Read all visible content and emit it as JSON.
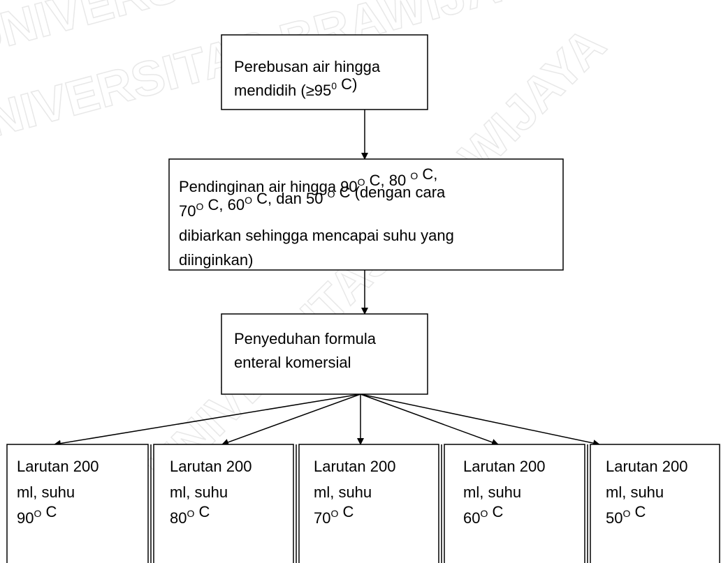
{
  "watermark": "UNIVERSITAS BRAWIJAYA",
  "nodes": [
    {
      "lines": [
        [
          "Perebusan air hingga"
        ],
        [
          "mendidih (≥95",
          {
            "sup": "0"
          },
          " C)"
        ]
      ]
    },
    {
      "lines": [
        [
          "Pendinginan air hingga 90",
          {
            "sup": "O"
          },
          " C, 80 ",
          {
            "sup": "O"
          },
          " C,"
        ],
        [
          "70",
          {
            "sup": "O"
          },
          " C, 60",
          {
            "sup": "O"
          },
          " C, dan 50 ",
          {
            "sup": "O"
          },
          " C (dengan cara"
        ],
        [
          "dibiarkan sehingga mencapai suhu yang"
        ],
        [
          "diinginkan)"
        ]
      ]
    },
    {
      "lines": [
        [
          "Penyeduhan formula"
        ],
        [
          "enteral komersial"
        ]
      ]
    },
    {
      "lines": [
        [
          "Larutan 200"
        ],
        [
          "ml, suhu"
        ],
        [
          "90",
          {
            "sup": "O"
          },
          " C"
        ]
      ]
    },
    {
      "lines": [
        [
          "Larutan 200"
        ],
        [
          "ml, suhu"
        ],
        [
          "80",
          {
            "sup": "O"
          },
          " C"
        ]
      ]
    },
    {
      "lines": [
        [
          "Larutan 200"
        ],
        [
          "ml, suhu"
        ],
        [
          "70",
          {
            "sup": "O"
          },
          " C"
        ]
      ]
    },
    {
      "lines": [
        [
          "Larutan 200"
        ],
        [
          "ml, suhu"
        ],
        [
          "60",
          {
            "sup": "O"
          },
          " C"
        ]
      ]
    },
    {
      "lines": [
        [
          "Larutan 200"
        ],
        [
          "ml, suhu"
        ],
        [
          "50",
          {
            "sup": "O"
          },
          " C"
        ]
      ]
    }
  ]
}
